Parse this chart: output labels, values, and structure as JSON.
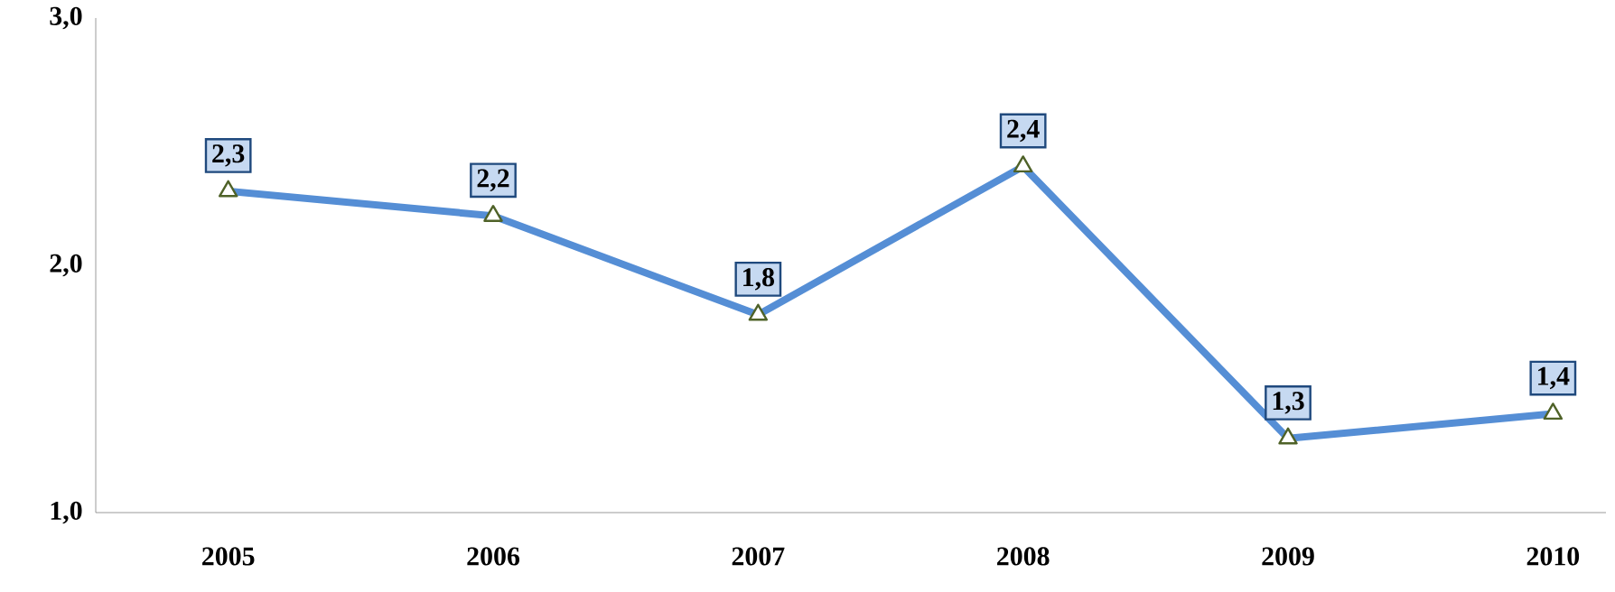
{
  "chart_data": {
    "type": "line",
    "categories": [
      "2005",
      "2006",
      "2007",
      "2008",
      "2009",
      "2010"
    ],
    "values": [
      2.3,
      2.2,
      1.8,
      2.4,
      1.3,
      1.4
    ],
    "value_labels": [
      "2,3",
      "2,2",
      "1,8",
      "2,4",
      "1,3",
      "1,4"
    ],
    "color": "#558ed5",
    "marker": "triangle",
    "line_style": "solid",
    "ylim": [
      1,
      3
    ],
    "yticks": [
      {
        "value": 1,
        "label": "1,0"
      },
      {
        "value": 2,
        "label": "2,0"
      },
      {
        "value": 3,
        "label": "3,0"
      }
    ]
  }
}
